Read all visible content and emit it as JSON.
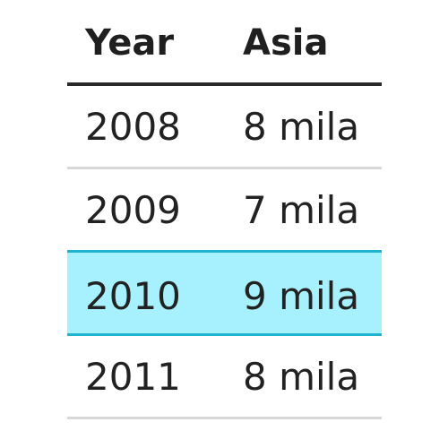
{
  "table": {
    "headers": [
      "Year",
      "Asia"
    ],
    "rows": [
      {
        "year": "2008",
        "asia": "8 mila",
        "highlighted": false
      },
      {
        "year": "2009",
        "asia": "7 mila",
        "highlighted": false
      },
      {
        "year": "2010",
        "asia": "9 mila",
        "highlighted": true
      },
      {
        "year": "2011",
        "asia": "8 mila",
        "highlighted": false
      }
    ],
    "highlight_color": "#a6f1fd",
    "highlight_border_color": "#1fb3cf"
  }
}
